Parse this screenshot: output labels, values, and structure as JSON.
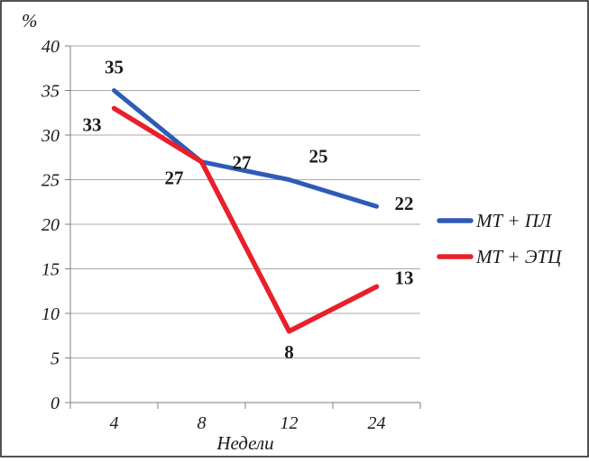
{
  "chart_data": {
    "type": "line",
    "categories": [
      "4",
      "8",
      "12",
      "24"
    ],
    "series": [
      {
        "name": "МТ + ПЛ",
        "values": [
          35,
          27,
          25,
          22
        ],
        "color": "#2E5BB8"
      },
      {
        "name": "МТ + ЭТЦ",
        "values": [
          33,
          27,
          8,
          13
        ],
        "color": "#E8202A"
      }
    ],
    "data_labels": [
      [
        "35",
        "27",
        "25",
        "22"
      ],
      [
        "33",
        "27",
        "8",
        "13"
      ]
    ],
    "title": "",
    "xlabel": "Недели",
    "ylabel": "%",
    "ylim": [
      0,
      40
    ],
    "y_ticks": [
      "0",
      "5",
      "10",
      "15",
      "20",
      "25",
      "30",
      "35",
      "40"
    ],
    "grid": true,
    "legend_position": "right"
  }
}
